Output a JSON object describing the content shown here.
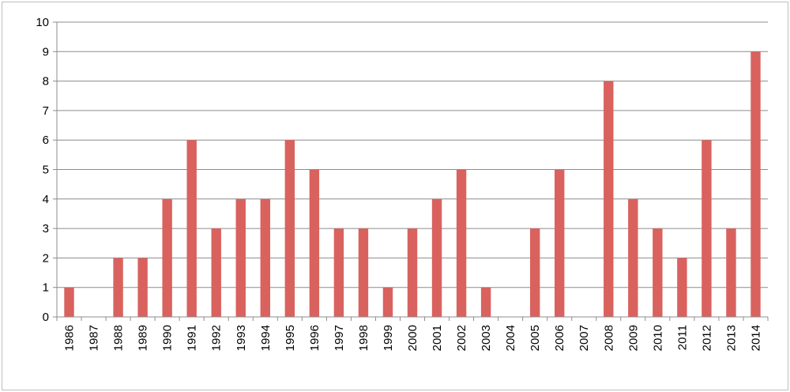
{
  "chart_data": {
    "type": "bar",
    "categories": [
      "1986",
      "1987",
      "1988",
      "1989",
      "1990",
      "1991",
      "1992",
      "1993",
      "1994",
      "1995",
      "1996",
      "1997",
      "1998",
      "1999",
      "2000",
      "2001",
      "2002",
      "2003",
      "2004",
      "2005",
      "2006",
      "2007",
      "2008",
      "2009",
      "2010",
      "2011",
      "2012",
      "2013",
      "2014"
    ],
    "values": [
      1,
      0,
      2,
      2,
      4,
      6,
      3,
      4,
      4,
      6,
      5,
      3,
      3,
      1,
      3,
      4,
      5,
      1,
      0,
      3,
      5,
      0,
      8,
      4,
      3,
      2,
      6,
      3,
      9
    ],
    "ylim": [
      0,
      10
    ],
    "yticks": [
      "0",
      "1",
      "2",
      "3",
      "4",
      "5",
      "6",
      "7",
      "8",
      "9",
      "10"
    ],
    "grid": true,
    "bar_color": "#d9625e",
    "grid_color": "#8c8c8c",
    "title": "",
    "xlabel": "",
    "ylabel": ""
  }
}
